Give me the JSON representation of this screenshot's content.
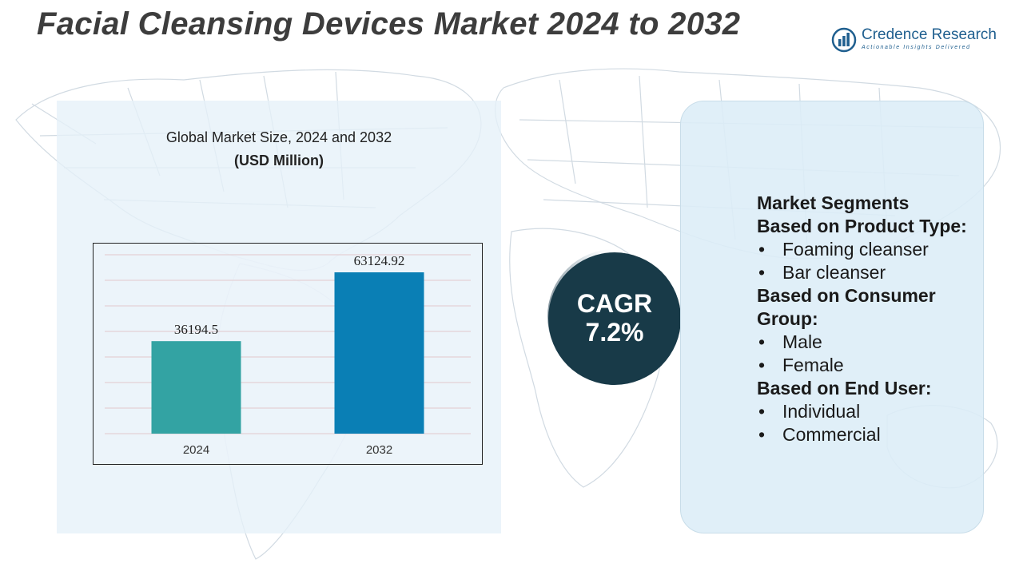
{
  "header": {
    "title": "Facial Cleansing Devices Market 2024 to 2032"
  },
  "logo": {
    "name": "Credence Research",
    "tagline": "Actionable Insights Delivered"
  },
  "chart_data": {
    "type": "bar",
    "title": "Global Market Size, 2024 and 2032",
    "subtitle": "(USD Million)",
    "categories": [
      "2024",
      "2032"
    ],
    "values": [
      36194.5,
      63124.92
    ],
    "value_labels": [
      "36194.5",
      "63124.92"
    ],
    "colors": [
      "#33a3a3",
      "#0a7fb5"
    ],
    "ylim": [
      0,
      70000
    ],
    "grid": true,
    "legend": "none"
  },
  "cagr": {
    "label": "CAGR",
    "value": "7.2%"
  },
  "segments": {
    "heading": "Market Segments",
    "groups": [
      {
        "title": "Based on Product Type:",
        "items": [
          "Foaming cleanser",
          "Bar cleanser"
        ]
      },
      {
        "title": "Based on Consumer Group:",
        "items": [
          "Male",
          "Female"
        ]
      },
      {
        "title": "Based on End User:",
        "items": [
          "Individual",
          "Commercial"
        ]
      }
    ]
  }
}
